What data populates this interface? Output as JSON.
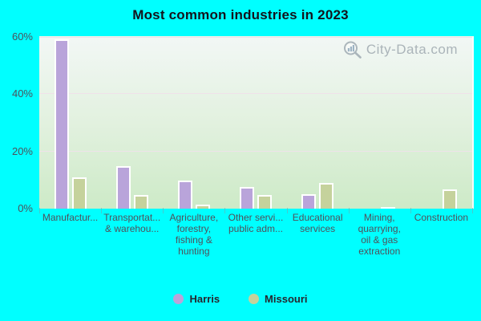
{
  "title": "Most common industries in 2023",
  "watermark": {
    "text": "City-Data.com",
    "icon": "magnifier-bar-chart-icon"
  },
  "chart_data": {
    "type": "bar",
    "title": "Most common industries in 2023",
    "xlabel": "",
    "ylabel": "",
    "ylim": [
      0,
      60
    ],
    "yticks": [
      0,
      20,
      40,
      60
    ],
    "ytick_labels": [
      "0%",
      "20%",
      "40%",
      "60%"
    ],
    "grid": "horizontal",
    "legend_position": "bottom",
    "categories": [
      "Manufactur...",
      "Transportat... & warehou...",
      "Agriculture, forestry, fishing & hunting",
      "Other servi... public adm...",
      "Educational services",
      "Mining, quarrying, oil & gas extraction",
      "Construction"
    ],
    "category_display_lines": [
      [
        "Manufactur..."
      ],
      [
        "Transportat...",
        "& warehou..."
      ],
      [
        "Agriculture,",
        "forestry,",
        "fishing &",
        "hunting"
      ],
      [
        "Other servi...",
        "public adm..."
      ],
      [
        "Educational",
        "services"
      ],
      [
        "Mining,",
        "quarrying,",
        "oil & gas",
        "extraction"
      ],
      [
        "Construction"
      ]
    ],
    "series": [
      {
        "name": "Harris",
        "color": "#b9a4da",
        "values": [
          59.3,
          14.8,
          9.7,
          7.5,
          5.0,
          0,
          0
        ]
      },
      {
        "name": "Missouri",
        "color": "#c5d29c",
        "values": [
          10.9,
          4.8,
          1.4,
          4.8,
          9.1,
          0.2,
          6.8
        ]
      }
    ]
  },
  "colors": {
    "page_background": "#00ffff",
    "plot_gradient_top": "#f2f7f5",
    "plot_gradient_bottom": "#cdeac7",
    "gridline": "#efe2ea",
    "bar_outline": "#ffffff",
    "axis_label": "#4c525c",
    "category_label": "#50505a",
    "title_color": "#14141c",
    "watermark_text": "#9fa9b0"
  }
}
